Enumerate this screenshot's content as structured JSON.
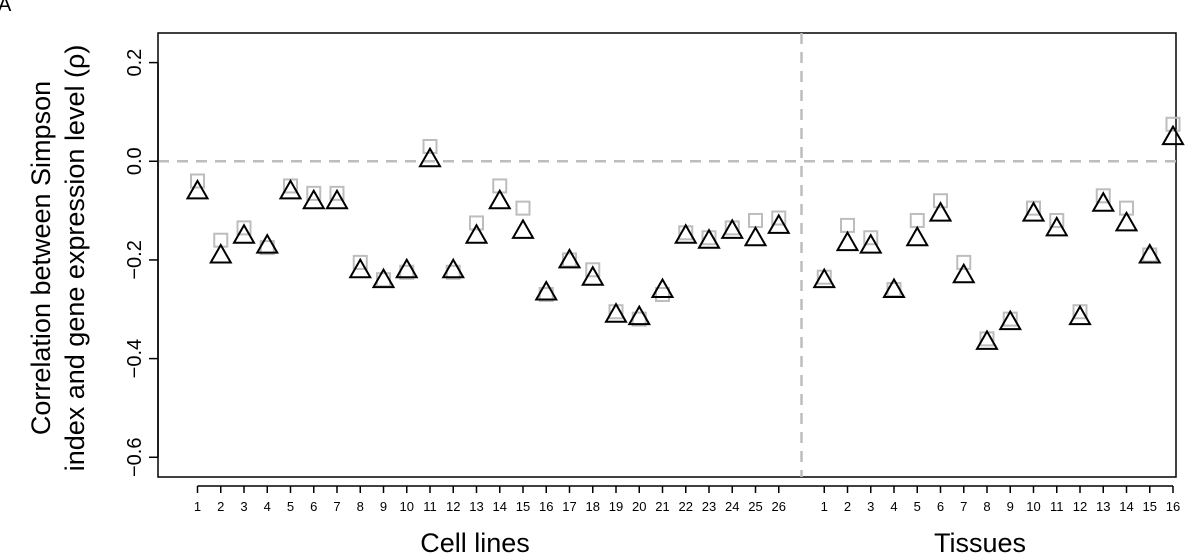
{
  "panel_letter": "A",
  "chart_data": {
    "type": "scatter",
    "title": "",
    "ylabel_line1": "Correlation between Simpson",
    "ylabel_line2": "index and gene expression level (ρ)",
    "ylim": [
      -0.64,
      0.26
    ],
    "yticks": [
      0.2,
      0.0,
      -0.2,
      -0.4,
      -0.6
    ],
    "ytick_labels": [
      "0.2",
      "0.0",
      "−0.2",
      "−0.4",
      "−0.6"
    ],
    "grid": false,
    "reference_line_y": 0.0,
    "groups": [
      {
        "label": "Cell lines",
        "tick_labels": [
          "1",
          "2",
          "3",
          "4",
          "5",
          "6",
          "7",
          "8",
          "9",
          "10",
          "11",
          "12",
          "13",
          "14",
          "15",
          "16",
          "17",
          "18",
          "19",
          "20",
          "21",
          "22",
          "23",
          "24",
          "25",
          "26"
        ],
        "squares": [
          -0.04,
          -0.16,
          -0.135,
          -0.175,
          -0.05,
          -0.065,
          -0.065,
          -0.205,
          -0.24,
          -0.225,
          0.03,
          -0.225,
          -0.125,
          -0.05,
          -0.095,
          -0.27,
          -0.2,
          -0.22,
          -0.305,
          -0.32,
          -0.27,
          -0.145,
          -0.155,
          -0.135,
          -0.12,
          -0.115
        ],
        "triangles": [
          -0.06,
          -0.19,
          -0.15,
          -0.17,
          -0.06,
          -0.08,
          -0.08,
          -0.22,
          -0.24,
          -0.22,
          0.005,
          -0.22,
          -0.15,
          -0.08,
          -0.14,
          -0.265,
          -0.2,
          -0.235,
          -0.31,
          -0.315,
          -0.26,
          -0.15,
          -0.16,
          -0.14,
          -0.155,
          -0.13
        ]
      },
      {
        "label": "Tissues",
        "tick_labels": [
          "1",
          "2",
          "3",
          "4",
          "5",
          "6",
          "7",
          "8",
          "9",
          "10",
          "11",
          "12",
          "13",
          "14",
          "15",
          "16"
        ],
        "squares": [
          -0.235,
          -0.13,
          -0.155,
          -0.26,
          -0.12,
          -0.08,
          -0.205,
          -0.36,
          -0.32,
          -0.095,
          -0.12,
          -0.305,
          -0.07,
          -0.095,
          -0.19,
          0.075
        ],
        "triangles": [
          -0.24,
          -0.165,
          -0.17,
          -0.26,
          -0.155,
          -0.105,
          -0.23,
          -0.365,
          -0.325,
          -0.105,
          -0.135,
          -0.315,
          -0.085,
          -0.125,
          -0.19,
          0.05
        ]
      }
    ],
    "colors": {
      "squares": "#bdbdbd",
      "triangles": "#000000",
      "dashed_lines": "#bdbdbd",
      "axes": "#000000"
    }
  }
}
